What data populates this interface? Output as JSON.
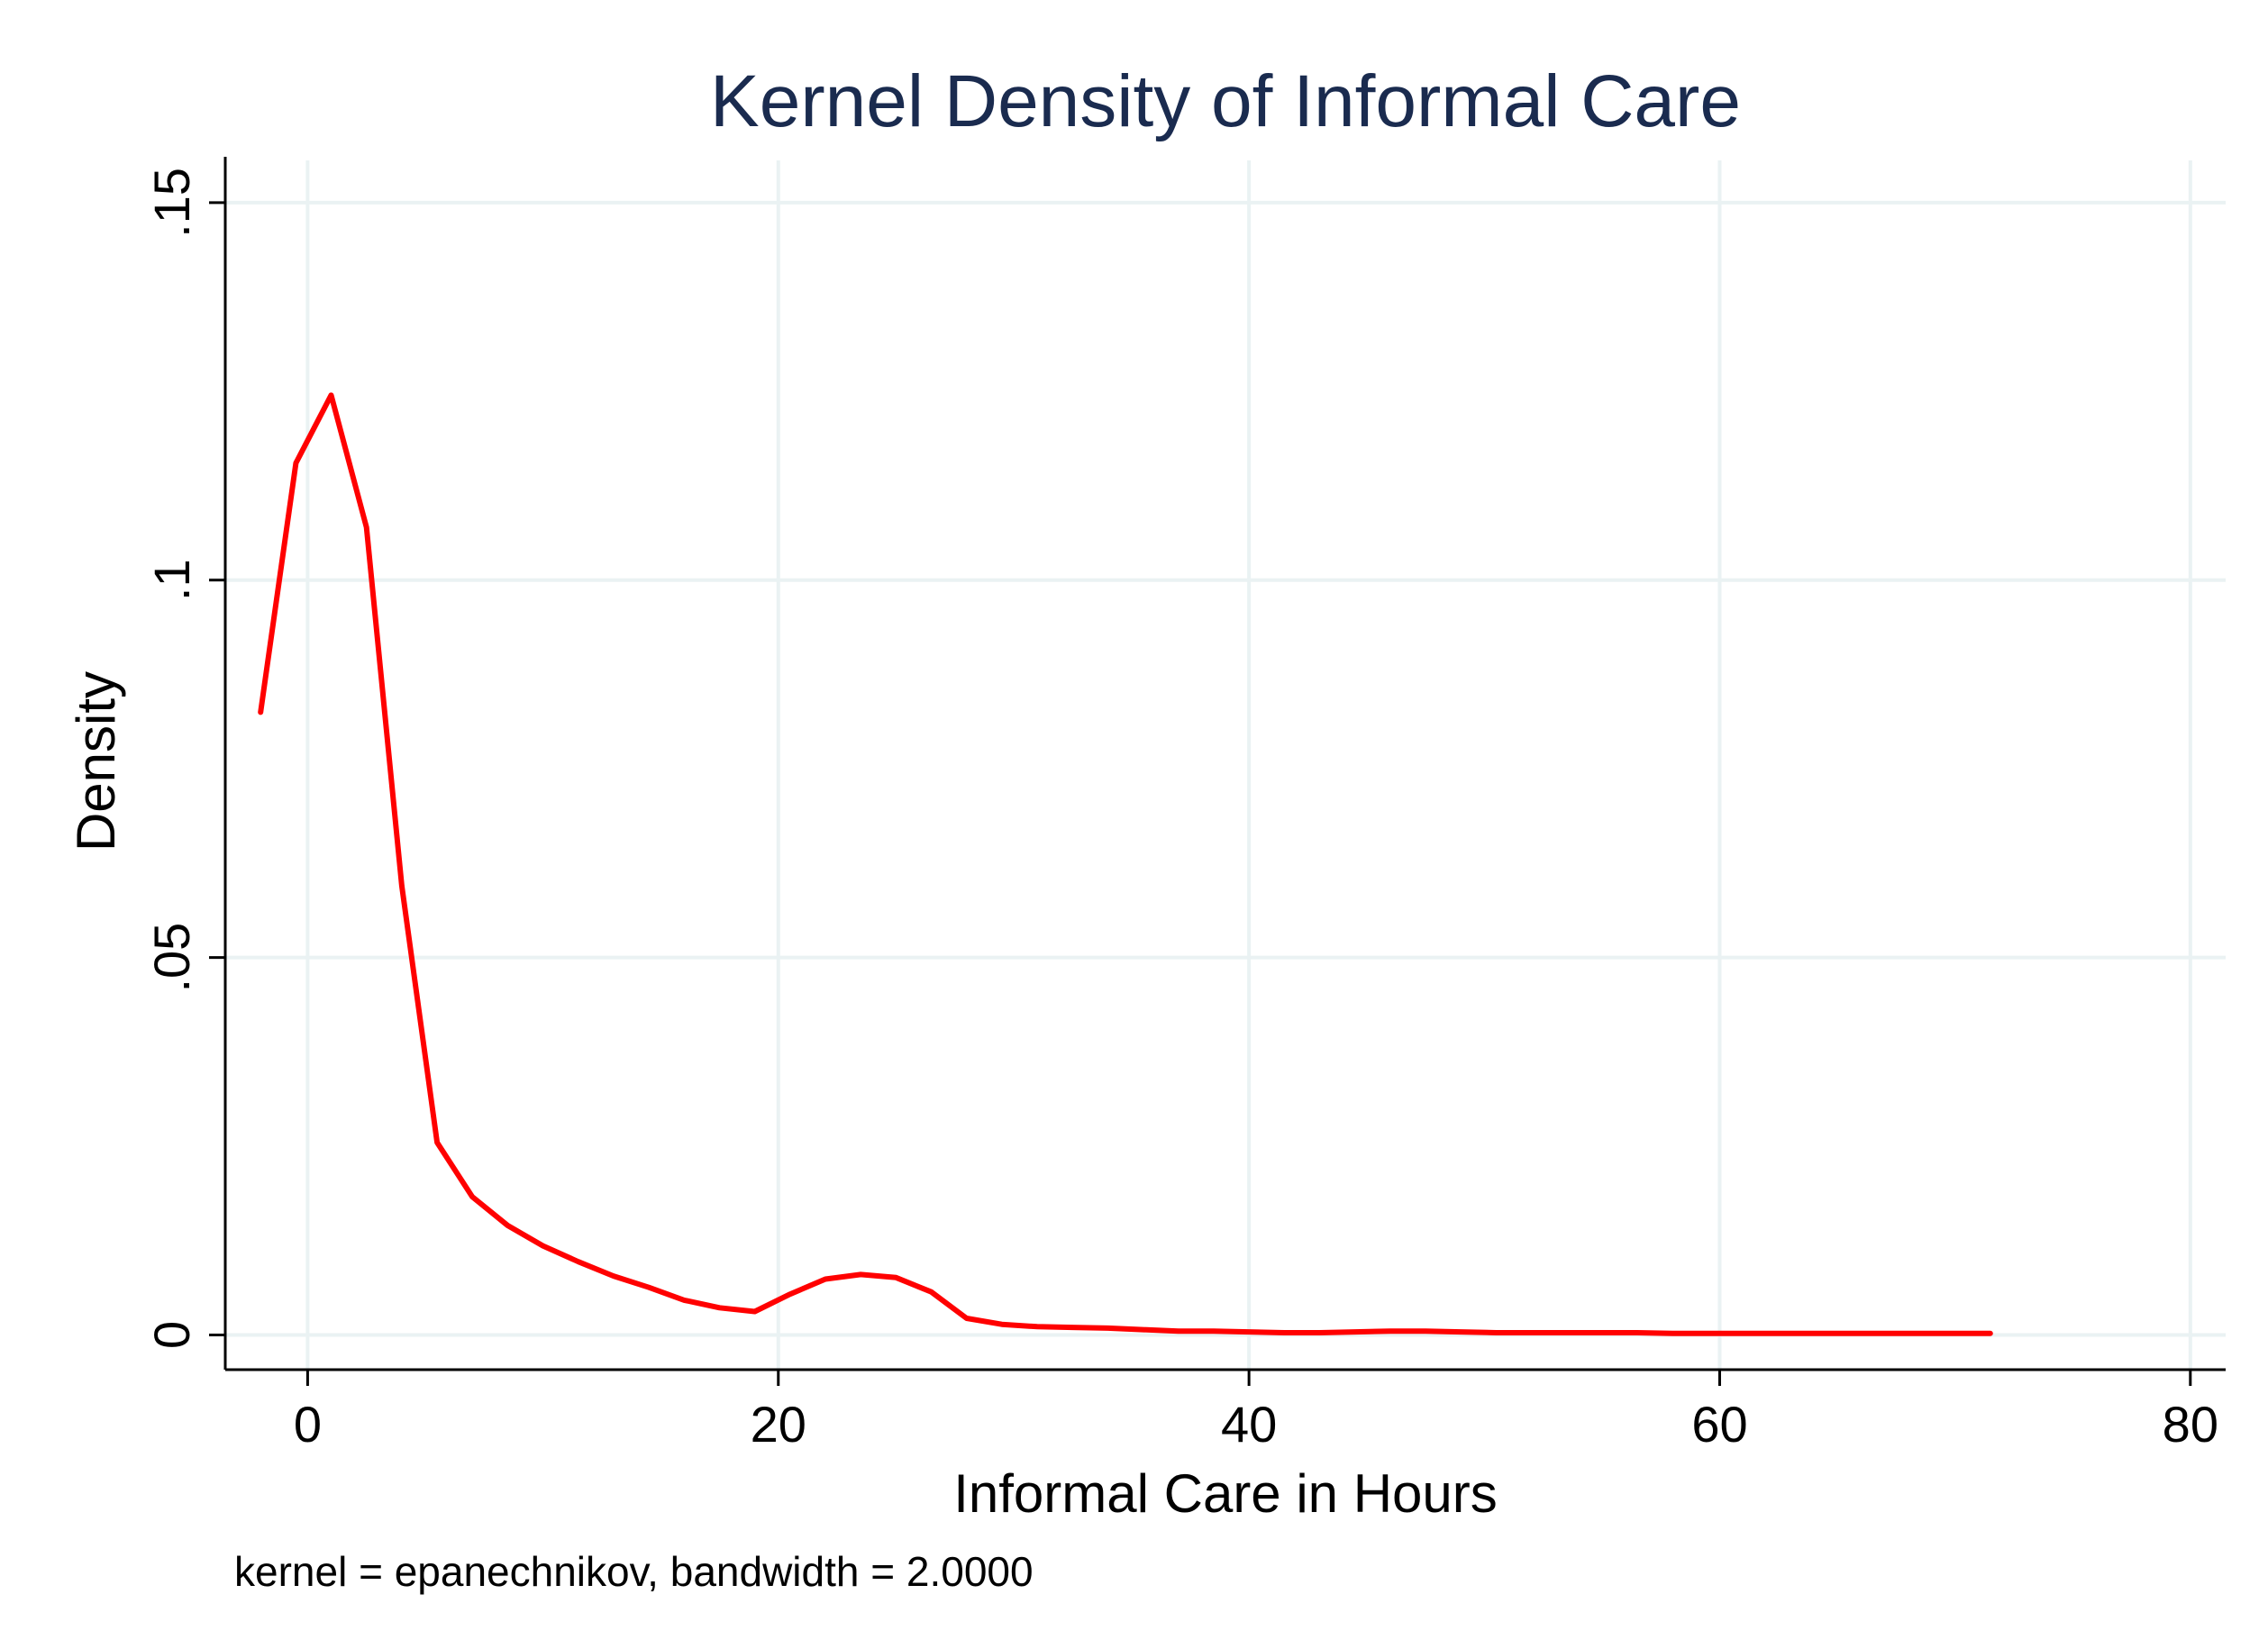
{
  "colors": {
    "title": "#1a2b4f",
    "line": "#ff0000",
    "grid": "#eaf2f3",
    "axis": "#000000",
    "background": "#ffffff"
  },
  "chart_data": {
    "type": "line",
    "title": "Kernel Density of Informal Care",
    "xlabel": "Informal Care in Hours",
    "ylabel": "Density",
    "note": "kernel = epanechnikov, bandwidth = 2.0000",
    "xlim": [
      -3.5,
      81.5
    ],
    "ylim": [
      -0.0046,
      0.1556
    ],
    "xticks": [
      0,
      20,
      40,
      60,
      80
    ],
    "xtick_labels": [
      "0",
      "20",
      "40",
      "60",
      "80"
    ],
    "yticks": [
      0,
      0.05,
      0.1,
      0.15
    ],
    "ytick_labels": [
      "0",
      ".05",
      ".1",
      ".15"
    ],
    "grid": true,
    "series": [
      {
        "name": "Density",
        "x": [
          -2.0,
          -0.5,
          1.0,
          2.5,
          4.0,
          5.5,
          7.0,
          8.5,
          10.0,
          11.5,
          13.0,
          14.5,
          16.0,
          17.5,
          19.0,
          20.5,
          22.0,
          23.5,
          25.0,
          26.5,
          28.0,
          29.5,
          31.0,
          32.5,
          34.0,
          35.5,
          37.0,
          38.5,
          40.0,
          41.5,
          43.0,
          44.5,
          46.0,
          47.5,
          49.0,
          50.5,
          52.0,
          53.5,
          55.0,
          56.5,
          58.0,
          59.5,
          61.0,
          62.5,
          64.0,
          65.5,
          67.0,
          68.5,
          70.0,
          71.5
        ],
        "y": [
          0.0825,
          0.1155,
          0.1245,
          0.107,
          0.0595,
          0.0255,
          0.0183,
          0.0145,
          0.0118,
          0.0097,
          0.0078,
          0.0063,
          0.0046,
          0.0036,
          0.0031,
          0.0054,
          0.0074,
          0.008,
          0.0076,
          0.0057,
          0.0022,
          0.0014,
          0.0011,
          0.001,
          0.0009,
          0.0007,
          0.0005,
          0.0005,
          0.0004,
          0.0003,
          0.0003,
          0.0004,
          0.0005,
          0.0005,
          0.0004,
          0.0003,
          0.0003,
          0.0003,
          0.0003,
          0.0003,
          0.0002,
          0.0002,
          0.0002,
          0.0002,
          0.0002,
          0.0002,
          0.0002,
          0.0002,
          0.0002,
          0.0002
        ]
      }
    ]
  }
}
